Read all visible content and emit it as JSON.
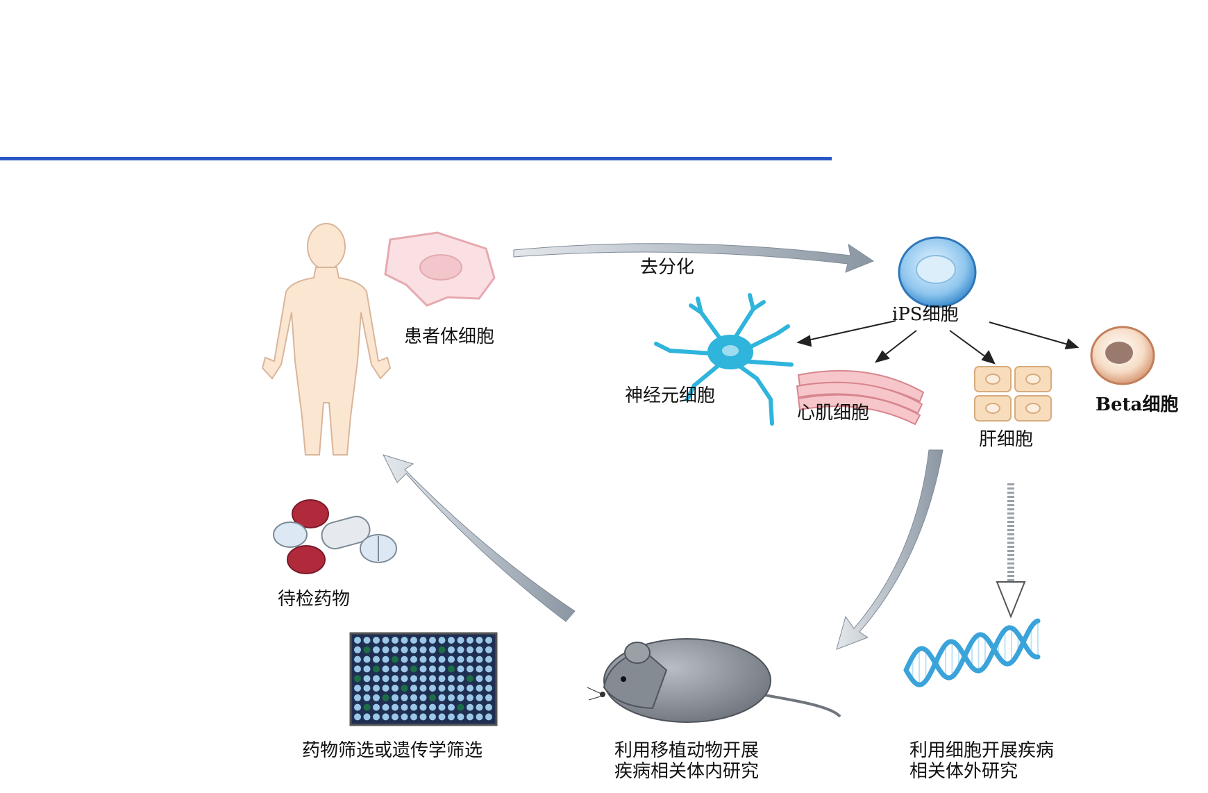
{
  "colors": {
    "rule": "#2a56c8",
    "arrow": "#9aa6b2",
    "skin": "#fbe3cc",
    "neuron": "#2fb4dc",
    "muscle": "#f2b8bd",
    "liver": "#f6d9b6",
    "mouse": "#8e949c",
    "dna": "#3aa3da",
    "plate_bg": "#1f2f52",
    "plate_dot": "#9bc7e8",
    "plate_hit": "#1d6d47",
    "pill_red": "#b02a3c"
  },
  "labels": {
    "dedifferentiation": "去分化",
    "patient_cells": "患者体细胞",
    "ips_cells": "iPS细胞",
    "neuron_cells": "神经元细胞",
    "cardiomyocytes": "心肌细胞",
    "hepatocytes": "肝细胞",
    "beta_cells": "Beta细胞",
    "drugs": "待检药物",
    "screening": "药物筛选或遗传学筛选",
    "in_vivo_line1": "利用移植动物开展",
    "in_vivo_line2": "疾病相关体内研究",
    "in_vitro_line1": "利用细胞开展疾病",
    "in_vitro_line2": "相关体外研究"
  },
  "icons": [
    "human-figure-icon",
    "somatic-cell-icon",
    "ips-cell-icon",
    "neuron-icon",
    "cardiomyocyte-icon",
    "hepatocyte-icon",
    "beta-cell-icon",
    "pills-icon",
    "well-plate-icon",
    "mouse-icon",
    "dna-icon"
  ]
}
